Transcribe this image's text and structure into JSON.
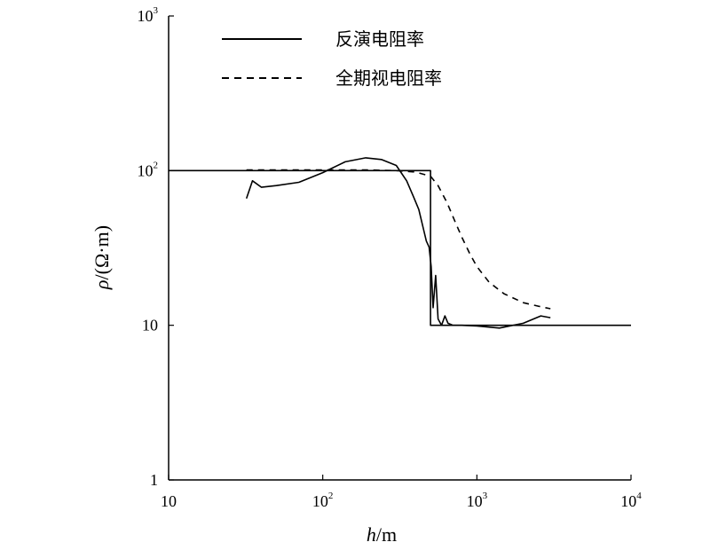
{
  "chart_data": {
    "type": "line",
    "x_scale": "log",
    "y_scale": "log",
    "xlim": [
      10,
      10000
    ],
    "ylim": [
      1,
      1000
    ],
    "x_ticks": [
      {
        "value": 10,
        "base": "10",
        "exp": ""
      },
      {
        "value": 100,
        "base": "10",
        "exp": "2"
      },
      {
        "value": 1000,
        "base": "10",
        "exp": "3"
      },
      {
        "value": 10000,
        "base": "10",
        "exp": "4"
      }
    ],
    "y_ticks": [
      {
        "value": 1,
        "base": "1",
        "exp": ""
      },
      {
        "value": 10,
        "base": "10",
        "exp": ""
      },
      {
        "value": 100,
        "base": "10",
        "exp": "2"
      },
      {
        "value": 1000,
        "base": "10",
        "exp": "3"
      }
    ],
    "xlabel_italic": "h",
    "xlabel_unit": "/m",
    "ylabel_italic": "ρ",
    "ylabel_unit": "/(Ω·m)",
    "grid": false,
    "legend_position": "top-left",
    "series": [
      {
        "name": "反演电阻率",
        "style": "solid",
        "color": "#000000",
        "x": [
          10,
          500,
          500,
          10000
        ],
        "y": [
          100,
          100,
          10,
          10
        ]
      },
      {
        "name": "",
        "style": "solid",
        "color": "#000000",
        "x": [
          32,
          35,
          40,
          50,
          70,
          100,
          140,
          190,
          240,
          300,
          350,
          390,
          420,
          450,
          470,
          490,
          505,
          520,
          540,
          560,
          590,
          620,
          650,
          700,
          800,
          1000,
          1400,
          2000,
          2600,
          3000
        ],
        "y": [
          66,
          86,
          78,
          80,
          84,
          97,
          114,
          121,
          118,
          108,
          86,
          67,
          56,
          42,
          35,
          32,
          24,
          13,
          21,
          11,
          10,
          11.5,
          10.3,
          10,
          10,
          9.9,
          9.6,
          10.3,
          11.5,
          11.2
        ]
      },
      {
        "name": "全期视电阻率",
        "style": "dashed",
        "color": "#000000",
        "x": [
          32,
          100,
          200,
          300,
          400,
          500,
          560,
          640,
          720,
          800,
          900,
          1000,
          1200,
          1500,
          2000,
          2500,
          3000
        ],
        "y": [
          101,
          101,
          101,
          100,
          98,
          92,
          80,
          62,
          47,
          37,
          29,
          24,
          19,
          16,
          14,
          13.3,
          12.8
        ]
      }
    ]
  }
}
